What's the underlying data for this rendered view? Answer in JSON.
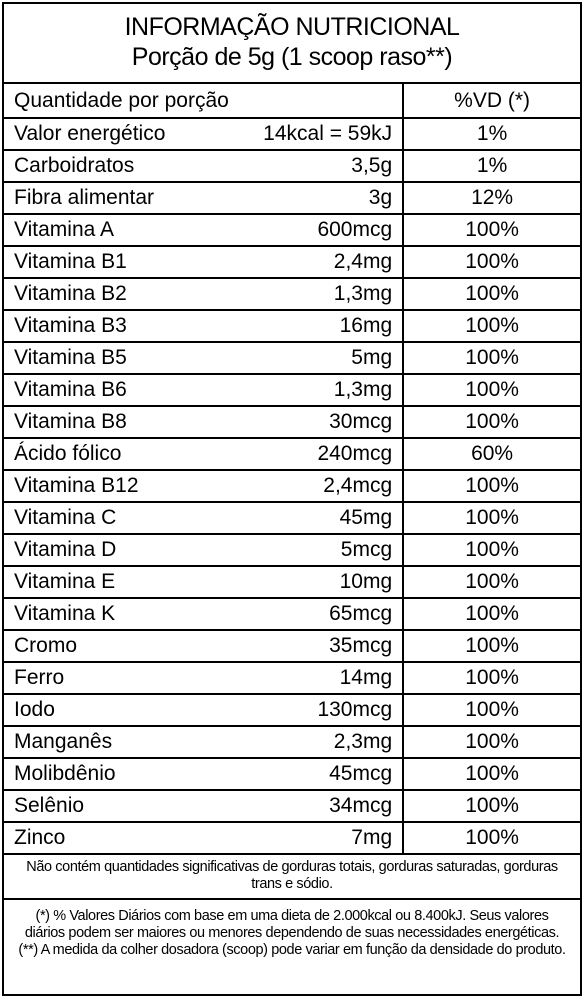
{
  "title": "INFORMAÇÃO NUTRICIONAL",
  "serving": "Porção de 5g (1 scoop raso**)",
  "table_header": {
    "label": "Quantidade por porção",
    "dv": "%VD (*)"
  },
  "rows": [
    {
      "name": "Valor energético",
      "amount": "14kcal = 59kJ",
      "dv": "1%"
    },
    {
      "name": "Carboidratos",
      "amount": "3,5g",
      "dv": "1%"
    },
    {
      "name": "Fibra alimentar",
      "amount": "3g",
      "dv": "12%"
    },
    {
      "name": "Vitamina A",
      "amount": "600mcg",
      "dv": "100%"
    },
    {
      "name": "Vitamina B1",
      "amount": "2,4mg",
      "dv": "100%"
    },
    {
      "name": "Vitamina B2",
      "amount": "1,3mg",
      "dv": "100%"
    },
    {
      "name": "Vitamina B3",
      "amount": "16mg",
      "dv": "100%"
    },
    {
      "name": "Vitamina B5",
      "amount": "5mg",
      "dv": "100%"
    },
    {
      "name": "Vitamina B6",
      "amount": "1,3mg",
      "dv": "100%"
    },
    {
      "name": "Vitamina B8",
      "amount": "30mcg",
      "dv": "100%"
    },
    {
      "name": "Ácido fólico",
      "amount": "240mcg",
      "dv": "60%"
    },
    {
      "name": "Vitamina B12",
      "amount": "2,4mcg",
      "dv": "100%"
    },
    {
      "name": "Vitamina C",
      "amount": "45mg",
      "dv": "100%"
    },
    {
      "name": "Vitamina D",
      "amount": "5mcg",
      "dv": "100%"
    },
    {
      "name": "Vitamina E",
      "amount": "10mg",
      "dv": "100%"
    },
    {
      "name": "Vitamina K",
      "amount": "65mcg",
      "dv": "100%"
    },
    {
      "name": "Cromo",
      "amount": "35mcg",
      "dv": "100%"
    },
    {
      "name": "Ferro",
      "amount": "14mg",
      "dv": "100%"
    },
    {
      "name": "Iodo",
      "amount": "130mcg",
      "dv": "100%"
    },
    {
      "name": "Manganês",
      "amount": "2,3mg",
      "dv": "100%"
    },
    {
      "name": "Molibdênio",
      "amount": "45mcg",
      "dv": "100%"
    },
    {
      "name": "Selênio",
      "amount": "34mcg",
      "dv": "100%"
    },
    {
      "name": "Zinco",
      "amount": "7mg",
      "dv": "100%"
    }
  ],
  "footnote_1": "Não contém quantidades significativas de gorduras totais, gorduras saturadas, gorduras trans e sódio.",
  "footnote_2": "(*) % Valores Diários com base em uma dieta de 2.000kcal ou 8.400kJ. Seus valores diários podem ser maiores ou menores dependendo de suas necessidades energéticas. (**) A medida da colher dosadora (scoop) pode variar em função da densidade do produto."
}
